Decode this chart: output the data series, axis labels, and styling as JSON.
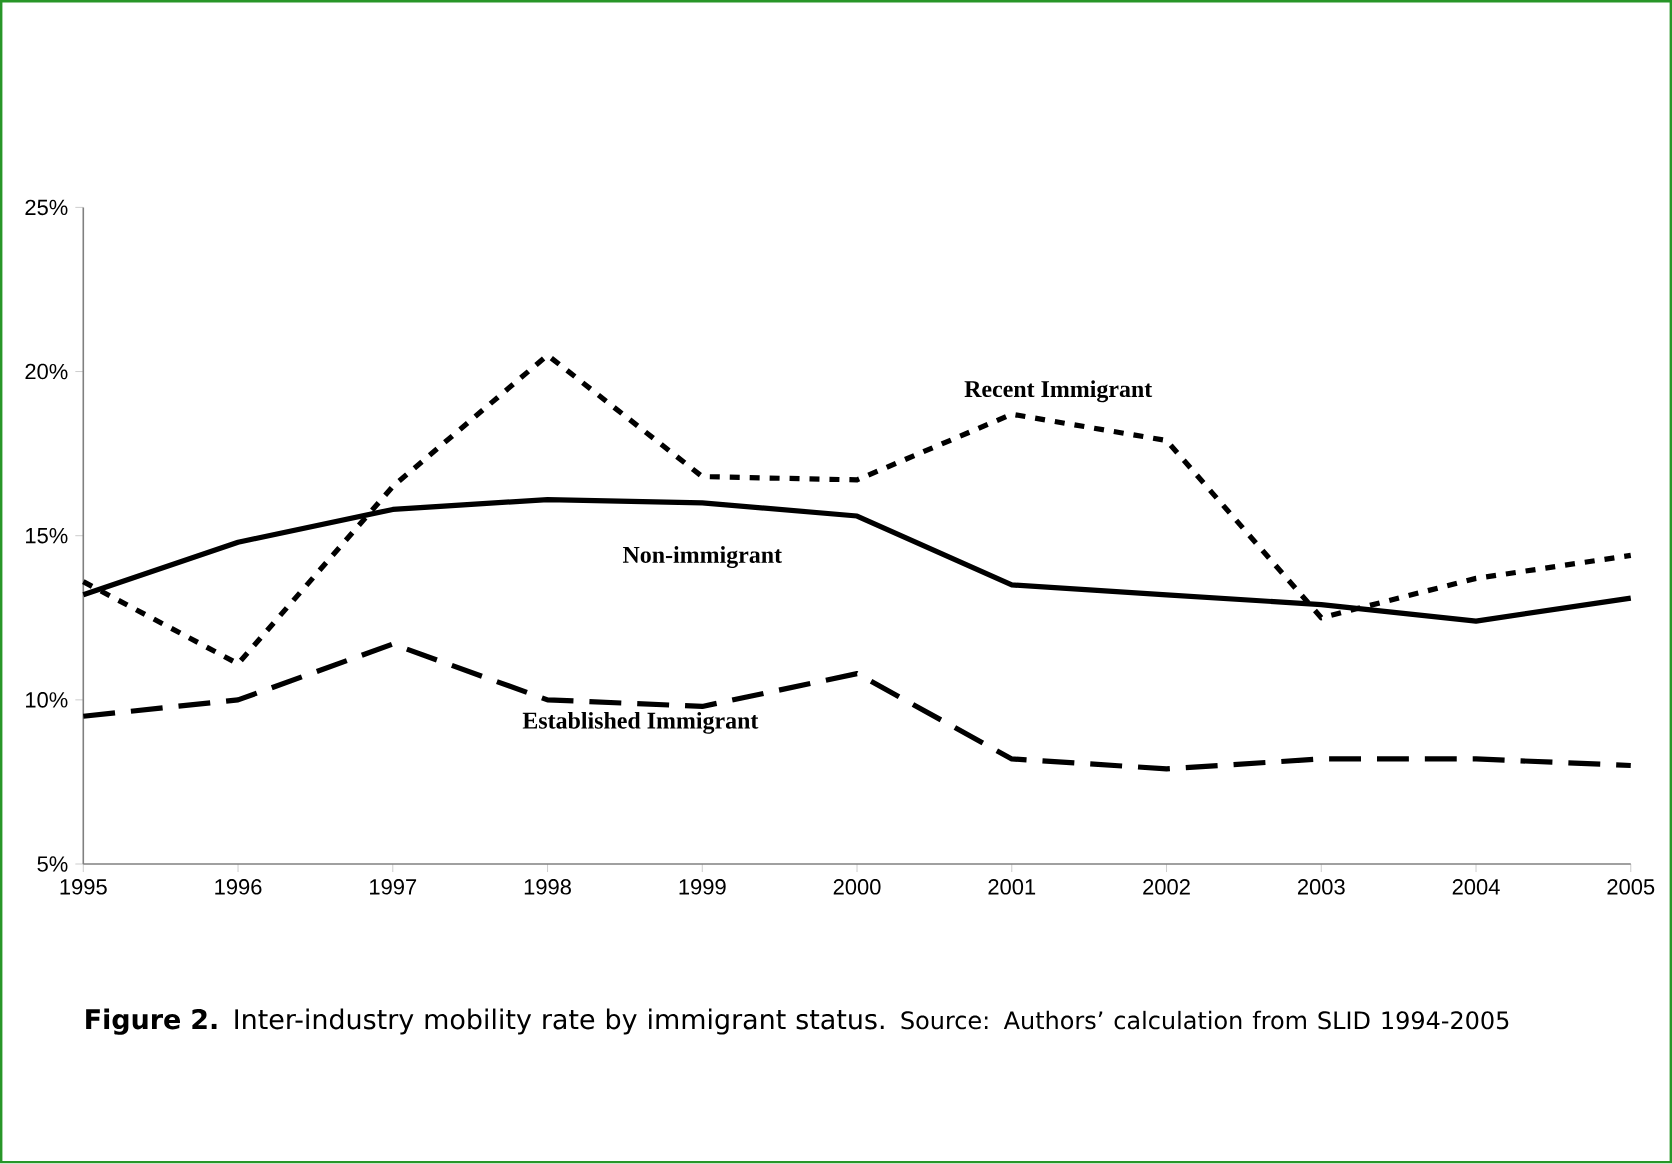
{
  "chart_data": {
    "type": "line",
    "title": "**Figure 2.** Inter-industry mobility rate by immigrant status.",
    "annotations": [
      "Source: Authors’ calculation from SLID 1994-2005"
    ],
    "x": [
      1995,
      1996,
      1997,
      1998,
      1999,
      2000,
      2001,
      2002,
      2003,
      2004,
      2005
    ],
    "series": [
      {
        "name": "Non-immigrant",
        "color": "#000000",
        "line_style": "solid",
        "values": [
          13.2,
          14.8,
          15.8,
          16.1,
          16.0,
          15.6,
          13.5,
          13.2,
          12.9,
          12.4,
          13.1
        ]
      },
      {
        "name": "Recent Immigrant",
        "color": "#000000",
        "line_style": "dotted",
        "values": [
          13.6,
          11.1,
          16.5,
          20.5,
          16.8,
          16.7,
          18.7,
          17.9,
          12.5,
          13.7,
          14.4
        ]
      },
      {
        "name": "Established Immigrant",
        "color": "#000000",
        "line_style": "dashed",
        "values": [
          9.5,
          10.0,
          11.7,
          10.0,
          9.8,
          10.8,
          8.2,
          7.9,
          8.2,
          8.2,
          8.0
        ]
      }
    ],
    "xlim": [
      1995,
      2005
    ],
    "ylim": [
      5,
      25
    ],
    "xticks": [
      1995,
      1996,
      1997,
      1998,
      1999,
      2000,
      2001,
      2002,
      2003,
      2004,
      2005
    ],
    "yticks": [
      {
        "value": 5,
        "label": "5%"
      },
      {
        "value": 10,
        "label": "10%"
      },
      {
        "value": 15,
        "label": "15%"
      },
      {
        "value": 20,
        "label": "20%"
      },
      {
        "value": 25,
        "label": "25%"
      }
    ],
    "grid": false,
    "legend": false,
    "marker": "none"
  }
}
